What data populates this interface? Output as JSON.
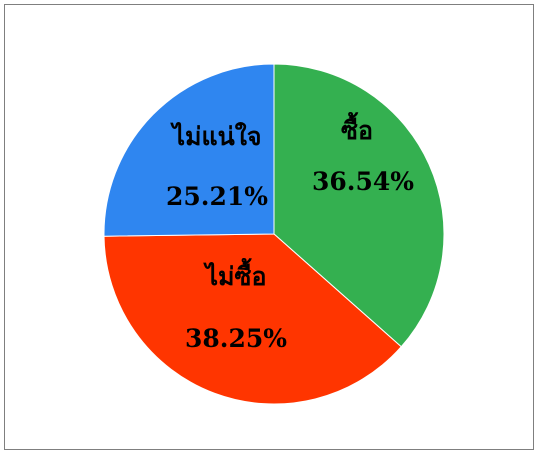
{
  "chart_data": {
    "type": "pie",
    "slices": [
      {
        "label": "ซื้อ",
        "value": 36.54,
        "value_text": "36.54%",
        "color": "#34b050"
      },
      {
        "label": "ไม่ซื้อ",
        "value": 38.25,
        "value_text": "38.25%",
        "color": "#ff3500"
      },
      {
        "label": "ไม่แน่ใจ",
        "value": 25.21,
        "value_text": "25.21%",
        "color": "#2f86f0"
      }
    ],
    "start_angle": "12 o'clock",
    "direction": "clockwise",
    "legend": "none",
    "border_color": "#7f7f7f"
  }
}
